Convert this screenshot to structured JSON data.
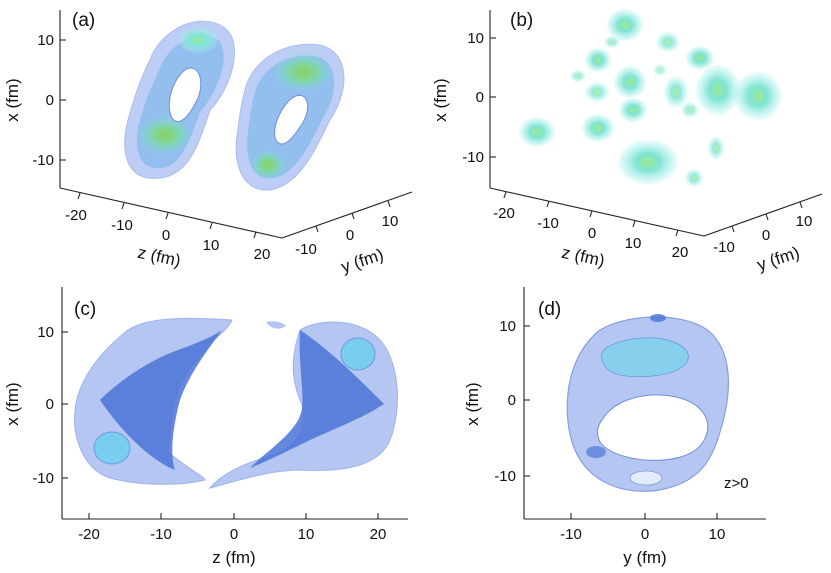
{
  "figure": {
    "panels": [
      {
        "label": "(a)",
        "x_axis_label": "x (fm)",
        "x_ticks": [
          "10",
          "0",
          "-10"
        ],
        "z_axis_label": "z (fm)",
        "z_ticks": [
          "-20",
          "-10",
          "0",
          "10",
          "20"
        ],
        "y_axis_label": "y (fm)",
        "y_ticks": [
          "-10",
          "0",
          "10"
        ]
      },
      {
        "label": "(b)",
        "x_axis_label": "x (fm)",
        "x_ticks": [
          "10",
          "0",
          "-10"
        ],
        "z_axis_label": "z (fm)",
        "z_ticks": [
          "-20",
          "-10",
          "0",
          "10",
          "20"
        ],
        "y_axis_label": "y (fm)",
        "y_ticks": [
          "-10",
          "0",
          "10"
        ]
      },
      {
        "label": "(c)",
        "x_axis_label": "x (fm)",
        "x_ticks": [
          "10",
          "0",
          "-10"
        ],
        "z_axis_label": "z (fm)",
        "z_ticks": [
          "-20",
          "-10",
          "0",
          "10",
          "20"
        ]
      },
      {
        "label": "(d)",
        "x_axis_label": "x (fm)",
        "x_ticks": [
          "10",
          "0",
          "-10"
        ],
        "y_axis_label": "y (fm)",
        "y_ticks": [
          "-10",
          "0",
          "10"
        ],
        "annotation": "z>0"
      }
    ],
    "colors": {
      "surface_outer": "#9fb4ef",
      "surface_inner": "#4a73d6",
      "density_cyan": "#7fe3df",
      "density_green": "#7fd36a"
    }
  }
}
